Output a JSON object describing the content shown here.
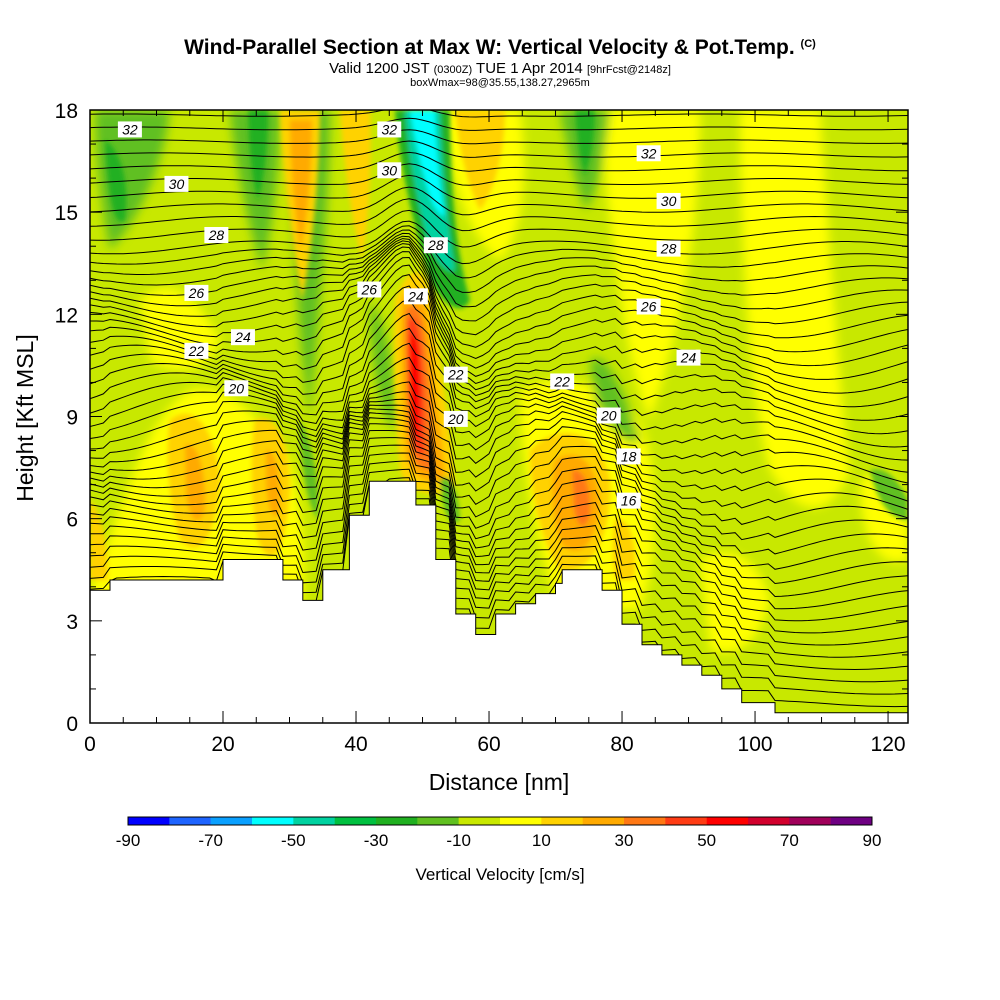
{
  "header": {
    "title": "Wind-Parallel Section at Max W: Vertical Velocity & Pot.Temp.",
    "title_mark": "(C)",
    "valid_prefix": "Valid 1200 JST",
    "valid_utc": "(0300Z)",
    "valid_date": "TUE 1 Apr 2014",
    "forecast": "[9hrFcst@2148z]",
    "box_info": "boxWmax=98@35.55,138.27,2965m"
  },
  "chart_data": {
    "type": "heatmap",
    "xlabel": "Distance [nm]",
    "ylabel": "Height [Kft MSL]",
    "xlim": [
      0,
      123
    ],
    "ylim": [
      0,
      18
    ],
    "x_ticks": [
      0,
      20,
      40,
      60,
      80,
      100,
      120
    ],
    "y_ticks": [
      0,
      3,
      6,
      9,
      12,
      15,
      18
    ],
    "grid": false,
    "colorbar": {
      "title": "Vertical Velocity [cm/s]",
      "placement": "bottom",
      "levels": [
        -90,
        -80,
        -70,
        -60,
        -50,
        -40,
        -30,
        -20,
        -10,
        0,
        10,
        20,
        30,
        40,
        50,
        60,
        70,
        80,
        90
      ],
      "labels": [
        "-90",
        "-70",
        "-50",
        "-30",
        "-10",
        "10",
        "30",
        "50",
        "70",
        "90"
      ],
      "colors": [
        "#0000ff",
        "#1e64ff",
        "#0aa0ff",
        "#00ffff",
        "#00d2a0",
        "#00c040",
        "#20b020",
        "#60c020",
        "#c8e800",
        "#ffff00",
        "#ffd200",
        "#ffaa00",
        "#ff7814",
        "#ff3c14",
        "#ff0000",
        "#d2002d",
        "#a0005a",
        "#6e0082"
      ]
    },
    "terrain": [
      [
        0,
        3.9
      ],
      [
        3,
        3.9
      ],
      [
        3,
        4.2
      ],
      [
        20,
        4.2
      ],
      [
        20,
        4.8
      ],
      [
        29,
        4.8
      ],
      [
        29,
        4.2
      ],
      [
        32,
        4.2
      ],
      [
        32,
        3.6
      ],
      [
        35,
        3.6
      ],
      [
        35,
        4.5
      ],
      [
        39,
        4.5
      ],
      [
        39,
        6.1
      ],
      [
        42,
        6.1
      ],
      [
        42,
        7.1
      ],
      [
        49,
        7.1
      ],
      [
        49,
        6.4
      ],
      [
        52,
        6.4
      ],
      [
        52,
        4.8
      ],
      [
        55,
        4.8
      ],
      [
        55,
        3.2
      ],
      [
        58,
        3.2
      ],
      [
        58,
        2.6
      ],
      [
        61,
        2.6
      ],
      [
        61,
        3.2
      ],
      [
        64,
        3.2
      ],
      [
        64,
        3.5
      ],
      [
        67,
        3.5
      ],
      [
        67,
        3.8
      ],
      [
        70,
        3.8
      ],
      [
        70,
        4.1
      ],
      [
        71,
        4.1
      ],
      [
        71,
        4.5
      ],
      [
        77,
        4.5
      ],
      [
        77,
        3.9
      ],
      [
        80,
        3.9
      ],
      [
        80,
        2.9
      ],
      [
        83,
        2.9
      ],
      [
        83,
        2.3
      ],
      [
        86,
        2.3
      ],
      [
        86,
        2.0
      ],
      [
        89,
        2.0
      ],
      [
        89,
        1.7
      ],
      [
        92,
        1.7
      ],
      [
        92,
        1.4
      ],
      [
        95,
        1.4
      ],
      [
        95,
        1.0
      ],
      [
        98,
        1.0
      ],
      [
        98,
        0.6
      ],
      [
        103,
        0.6
      ],
      [
        103,
        0.3
      ],
      [
        123,
        0.3
      ]
    ],
    "theta_contours": [
      {
        "value": "16",
        "label_pos": [
          81,
          6.5
        ]
      },
      {
        "value": "18",
        "label_pos": [
          81,
          7.8
        ]
      },
      {
        "value": "20",
        "label_pos": [
          22,
          9.8
        ]
      },
      {
        "value": "20",
        "label_pos": [
          55,
          8.9
        ]
      },
      {
        "value": "20",
        "label_pos": [
          78,
          9.0
        ]
      },
      {
        "value": "22",
        "label_pos": [
          16,
          10.9
        ]
      },
      {
        "value": "22",
        "label_pos": [
          55,
          10.2
        ]
      },
      {
        "value": "22",
        "label_pos": [
          71,
          10.0
        ]
      },
      {
        "value": "24",
        "label_pos": [
          23,
          11.3
        ]
      },
      {
        "value": "24",
        "label_pos": [
          49,
          12.5
        ]
      },
      {
        "value": "24",
        "label_pos": [
          90,
          10.7
        ]
      },
      {
        "value": "26",
        "label_pos": [
          16,
          12.6
        ]
      },
      {
        "value": "26",
        "label_pos": [
          42,
          12.7
        ]
      },
      {
        "value": "26",
        "label_pos": [
          84,
          12.2
        ]
      },
      {
        "value": "28",
        "label_pos": [
          19,
          14.3
        ]
      },
      {
        "value": "28",
        "label_pos": [
          52,
          14.0
        ]
      },
      {
        "value": "28",
        "label_pos": [
          87,
          13.9
        ]
      },
      {
        "value": "30",
        "label_pos": [
          13,
          15.8
        ]
      },
      {
        "value": "30",
        "label_pos": [
          45,
          16.2
        ]
      },
      {
        "value": "30",
        "label_pos": [
          87,
          15.3
        ]
      },
      {
        "value": "32",
        "label_pos": [
          6,
          17.4
        ]
      },
      {
        "value": "32",
        "label_pos": [
          45,
          17.4
        ]
      },
      {
        "value": "32",
        "label_pos": [
          84,
          16.7
        ]
      }
    ]
  }
}
